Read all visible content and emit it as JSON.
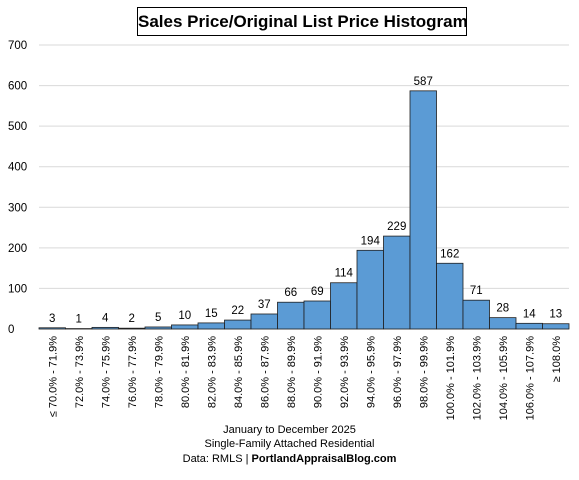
{
  "chart_data": {
    "type": "bar",
    "title": "Sales Price/Original List Price Histogram",
    "categories": [
      "≤ 70.0% - 71.9%",
      "72.0% - 73.9%",
      "74.0% - 75.9%",
      "76.0% - 77.9%",
      "78.0% - 79.9%",
      "80.0% - 81.9%",
      "82.0% - 83.9%",
      "84.0% - 85.9%",
      "86.0% - 87.9%",
      "88.0% - 89.9%",
      "90.0% - 91.9%",
      "92.0% - 93.9%",
      "94.0% - 95.9%",
      "96.0% - 97.9%",
      "98.0% - 99.9%",
      "100.0% - 101.9%",
      "102.0% - 103.9%",
      "104.0% - 105.9%",
      "106.0% - 107.9%",
      "≥ 108.0%"
    ],
    "values": [
      3,
      1,
      4,
      2,
      5,
      10,
      15,
      22,
      37,
      66,
      69,
      114,
      194,
      229,
      587,
      162,
      71,
      28,
      14,
      13
    ],
    "ylim": [
      0,
      700
    ],
    "yticks": [
      "0",
      "100",
      "200",
      "300",
      "400",
      "500",
      "600",
      "700"
    ],
    "xlabel": "",
    "ylabel": "",
    "grid": true,
    "bar_color": "#5b9bd5",
    "bar_edge_color": "#1f1f1f",
    "grid_color": "#d9d9d9"
  },
  "footer": {
    "line1": "January to December 2025",
    "line2": "Single-Family Attached Residential",
    "line3_prefix": "Data: RMLS | ",
    "line3_site": "PortlandAppraisalBlog.com"
  }
}
